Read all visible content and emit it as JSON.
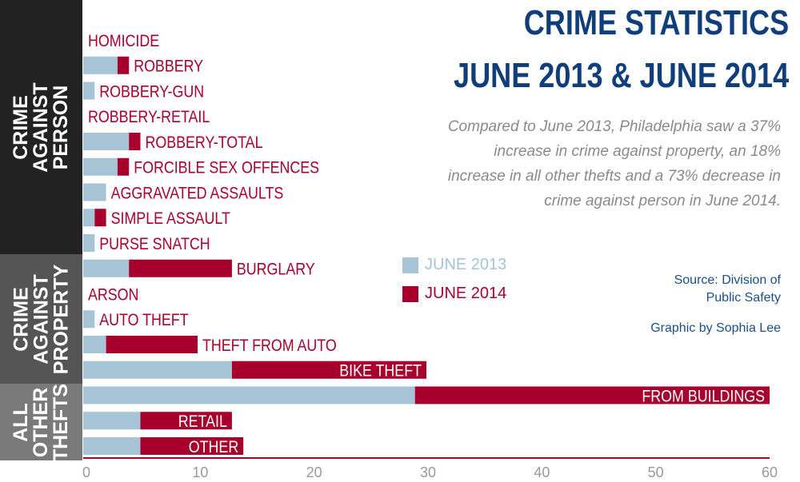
{
  "title_line1": "CRIME STATISTICS",
  "title_line2": "JUNE 2013 & JUNE 2014",
  "description": "Compared to June 2013, Philadelphia saw a 37% increase in crime against property, an 18% increase in all other thefts and a 73% decrease in crime against person in June 2014.",
  "source": "Source: Division of Public Safety",
  "credit": "Graphic by Sophia Lee",
  "groups": [
    {
      "label": "CRIME\nAGAINST\nPERSON"
    },
    {
      "label": "CRIME\nAGAINST\nPROPERTY"
    },
    {
      "label": "ALL\nOTHER\nTHEFTS"
    }
  ],
  "colors": {
    "june2013": "#a6c4d6",
    "june2014": "#a8002c",
    "title": "#0f3e7a",
    "band1": "#222222",
    "band2": "#555555",
    "band3": "#7a7a7a"
  },
  "chart_data": {
    "type": "bar",
    "orientation": "horizontal",
    "stacked": true,
    "title": "CRIME STATISTICS JUNE 2013 & JUNE 2014",
    "categories": [
      "HOMICIDE",
      "ROBBERY",
      "ROBBERY-GUN",
      "ROBBERY-RETAIL",
      "ROBBERY-TOTAL",
      "FORCIBLE SEX OFFENCES",
      "AGGRAVATED ASSAULTS",
      "SIMPLE ASSAULT",
      "PURSE SNATCH",
      "BURGLARY",
      "ARSON",
      "AUTO THEFT",
      "THEFT FROM AUTO",
      "BIKE THEFT",
      "FROM BUILDINGS",
      "RETAIL",
      "OTHER"
    ],
    "series": [
      {
        "name": "JUNE 2013",
        "values": [
          0,
          3,
          1,
          0,
          4,
          3,
          2,
          1,
          1,
          4,
          0,
          1,
          2,
          13,
          29,
          5,
          5
        ]
      },
      {
        "name": "JUNE 2014",
        "values": [
          0,
          1,
          0,
          0,
          1,
          1,
          0,
          1,
          0,
          9,
          0,
          0,
          8,
          17,
          31,
          8,
          9
        ]
      }
    ],
    "xlim": [
      0,
      60
    ],
    "xticks": [
      "0",
      "10",
      "20",
      "30",
      "40",
      "50",
      "60"
    ],
    "legend_position": "center-right",
    "grid": false
  }
}
